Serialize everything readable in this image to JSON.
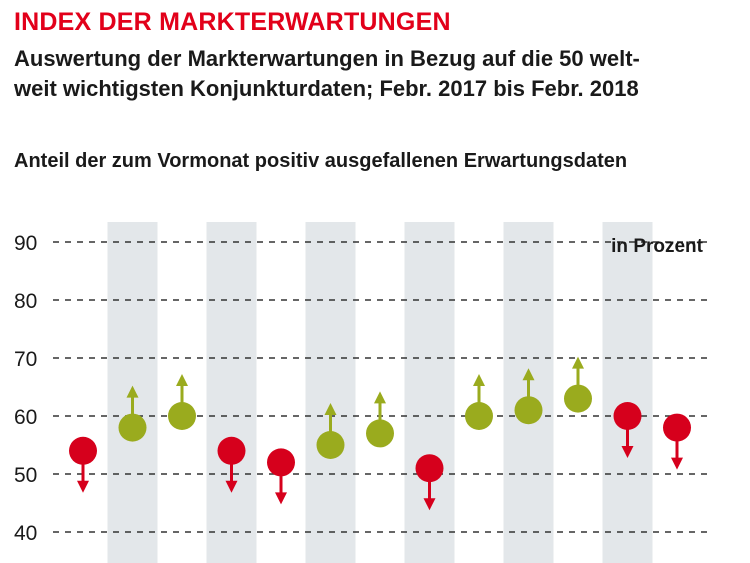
{
  "title": "INDEX DER MARKTERWARTUNGEN",
  "subtitle_lines": [
    "Auswertung der Markterwartungen in Bezug auf die 50 welt-",
    "weit wichtigsten Konjunkturdaten; Febr. 2017 bis Febr. 2018"
  ],
  "note": "Anteil der zum Vormonat positiv ausgefallenen Erwartungsdaten",
  "colors": {
    "up": "#9aab1e",
    "down": "#d6001c",
    "band": "#e3e7ea",
    "title": "#e2001a"
  },
  "chart_data": {
    "type": "scatter",
    "title": "INDEX DER MARKTERWARTUNGEN",
    "unit_label": "in Prozent",
    "ylim": [
      40,
      90
    ],
    "yticks": [
      40,
      50,
      60,
      70,
      80,
      90
    ],
    "grid": true,
    "x": [
      1,
      2,
      3,
      4,
      5,
      6,
      7,
      8,
      9,
      10,
      11,
      12,
      13
    ],
    "values": [
      54,
      58,
      60,
      54,
      52,
      55,
      57,
      51,
      60,
      61,
      63,
      60,
      58
    ],
    "direction": [
      "down",
      "up",
      "up",
      "down",
      "down",
      "up",
      "up",
      "down",
      "up",
      "up",
      "up",
      "down",
      "down"
    ]
  }
}
